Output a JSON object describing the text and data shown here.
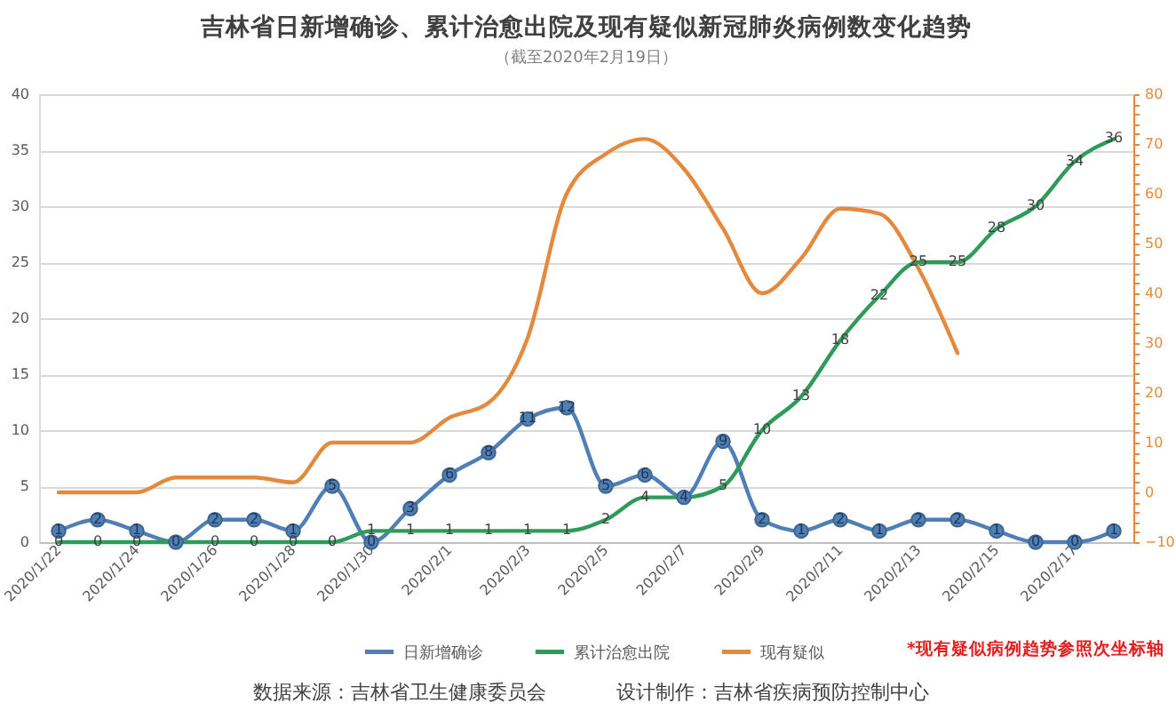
{
  "chart_data": {
    "type": "line",
    "title": "吉林省日新增确诊、累计治愈出院及现有疑似新冠肺炎病例数变化趋势",
    "subtitle": "（截至2020年2月19日）",
    "categories": [
      "2020/1/22",
      null,
      "2020/1/24",
      null,
      "2020/1/26",
      null,
      "2020/1/28",
      null,
      "2020/1/30",
      null,
      "2020/2/1",
      null,
      "2020/2/3",
      null,
      "2020/2/5",
      null,
      "2020/2/7",
      null,
      "2020/2/9",
      null,
      "2020/2/11",
      null,
      "2020/2/13",
      null,
      "2020/2/15",
      null,
      "2020/2/17",
      null
    ],
    "ylim": [
      0,
      40
    ],
    "yticks": [
      0,
      5,
      10,
      15,
      20,
      25,
      30,
      35,
      40
    ],
    "y2lim": [
      -10,
      80
    ],
    "y2ticks": [
      -10,
      {
        "value": -8,
        "label": null
      },
      {
        "value": -6,
        "label": null
      },
      {
        "value": -4,
        "label": null
      },
      {
        "value": -2,
        "label": null
      },
      0,
      {
        "value": 2,
        "label": null
      },
      {
        "value": 4,
        "label": null
      },
      {
        "value": 6,
        "label": null
      },
      {
        "value": 8,
        "label": null
      },
      10,
      {
        "value": 12,
        "label": null
      },
      {
        "value": 14,
        "label": null
      },
      {
        "value": 16,
        "label": null
      },
      {
        "value": 18,
        "label": null
      },
      20,
      {
        "value": 22,
        "label": null
      },
      {
        "value": 24,
        "label": null
      },
      {
        "value": 26,
        "label": null
      },
      {
        "value": 28,
        "label": null
      },
      30,
      {
        "value": 32,
        "label": null
      },
      {
        "value": 34,
        "label": null
      },
      {
        "value": 36,
        "label": null
      },
      {
        "value": 38,
        "label": null
      },
      40,
      {
        "value": 42,
        "label": null
      },
      {
        "value": 44,
        "label": null
      },
      {
        "value": 46,
        "label": null
      },
      {
        "value": 48,
        "label": null
      },
      50,
      {
        "value": 52,
        "label": null
      },
      {
        "value": 54,
        "label": null
      },
      {
        "value": 56,
        "label": null
      },
      {
        "value": 58,
        "label": null
      },
      60,
      {
        "value": 62,
        "label": null
      },
      {
        "value": 64,
        "label": null
      },
      {
        "value": 66,
        "label": null
      },
      {
        "value": 68,
        "label": null
      },
      70,
      {
        "value": 72,
        "label": null
      },
      {
        "value": 74,
        "label": null
      },
      {
        "value": 76,
        "label": null
      },
      {
        "value": 78,
        "label": null
      },
      80
    ],
    "grid": "y",
    "legend": "bottom",
    "line_style": "solid",
    "series": [
      {
        "name": "日新增确诊",
        "color": "#4f7fb5",
        "marker": "circle",
        "data_labels": true,
        "values": [
          1,
          2,
          1,
          0,
          2,
          2,
          1,
          5,
          0,
          3,
          6,
          8,
          11,
          12,
          5,
          6,
          4,
          9,
          2,
          1,
          2,
          1,
          2,
          2,
          1,
          0,
          0,
          1
        ]
      },
      {
        "name": "累计治愈出院",
        "color": "#2e9b5a",
        "marker": "none",
        "values": [
          0,
          0,
          0,
          0,
          0,
          0,
          0,
          0,
          1,
          1,
          1,
          1,
          1,
          1,
          2,
          4,
          4,
          5,
          10,
          13,
          18,
          22,
          25,
          25,
          28,
          30,
          34,
          36
        ],
        "value_labels": [
          "0",
          "0",
          "0",
          null,
          "0",
          "0",
          "0",
          "0",
          "1",
          "1",
          "1",
          "1",
          "1",
          "1",
          "2",
          "4",
          null,
          "5",
          "10",
          "13",
          "18",
          "22",
          "25",
          "25",
          "28",
          "30",
          "34",
          "36"
        ]
      },
      {
        "name": "现有疑似",
        "color": "#e38a3f",
        "marker": "none",
        "axis": "y2",
        "values": [
          0,
          0,
          0,
          3,
          3,
          3,
          2,
          10,
          10,
          10,
          15,
          18,
          31,
          60,
          68,
          71,
          65,
          53,
          40,
          47,
          57,
          56,
          45,
          28,
          null,
          null,
          null,
          null
        ]
      }
    ],
    "annotations": [
      "*现有疑似病例趋势参照次坐标轴",
      "数据来源：吉林省卫生健康委员会",
      "设计制作：吉林省疾病预防控制中心"
    ]
  }
}
